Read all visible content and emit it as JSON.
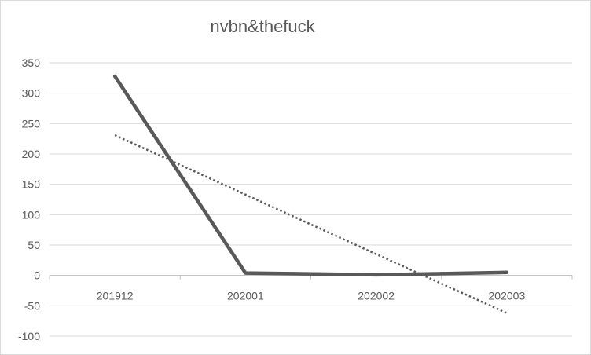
{
  "chart_data": {
    "type": "line",
    "title": "nvbn&thefuck",
    "xlabel": "",
    "ylabel": "",
    "categories": [
      "201912",
      "202001",
      "202002",
      "202003"
    ],
    "series": [
      {
        "values": [
          328,
          4,
          1,
          5
        ],
        "color": "#595959",
        "style": "solid"
      },
      {
        "values": [
          231,
          133,
          35,
          -62
        ],
        "color": "#595959",
        "style": "dotted",
        "trendline": true
      }
    ],
    "yticks": [
      350,
      300,
      250,
      200,
      150,
      100,
      50,
      0,
      -50,
      -100
    ],
    "ylim": [
      -100,
      350
    ],
    "grid": true,
    "legend": "none"
  }
}
